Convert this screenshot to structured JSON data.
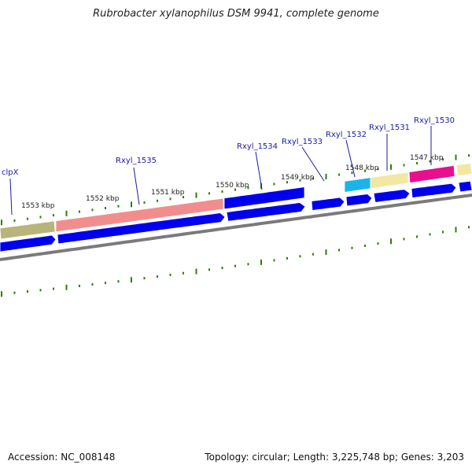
{
  "title": "Rubrobacter xylanophilus DSM 9941, complete genome",
  "footer": {
    "accession": "Accession: NC_008148",
    "summary": "Topology: circular; Length: 3,225,748 bp; Genes: 3,203"
  },
  "colors": {
    "gene_cds": "#0000ee",
    "tick": "#2a7f00",
    "backbone": "#7a7a7a",
    "label": "#1a1aaa",
    "cog_olive": "#b8b47a",
    "cog_salmon": "#f28d8d",
    "cog_cyan": "#19b5e8",
    "cog_cream": "#f3e7a1",
    "cog_magenta": "#e8108e"
  },
  "scale_labels": [
    "1553 kbp",
    "1552 kbp",
    "1551 kbp",
    "1550 kbp",
    "1549 kbp",
    "1548 kbp",
    "1547 kbp"
  ],
  "gene_labels": [
    "clpX",
    "Rxyl_1535",
    "Rxyl_1534",
    "Rxyl_1533",
    "Rxyl_1532",
    "Rxyl_1531",
    "Rxyl_1530"
  ]
}
